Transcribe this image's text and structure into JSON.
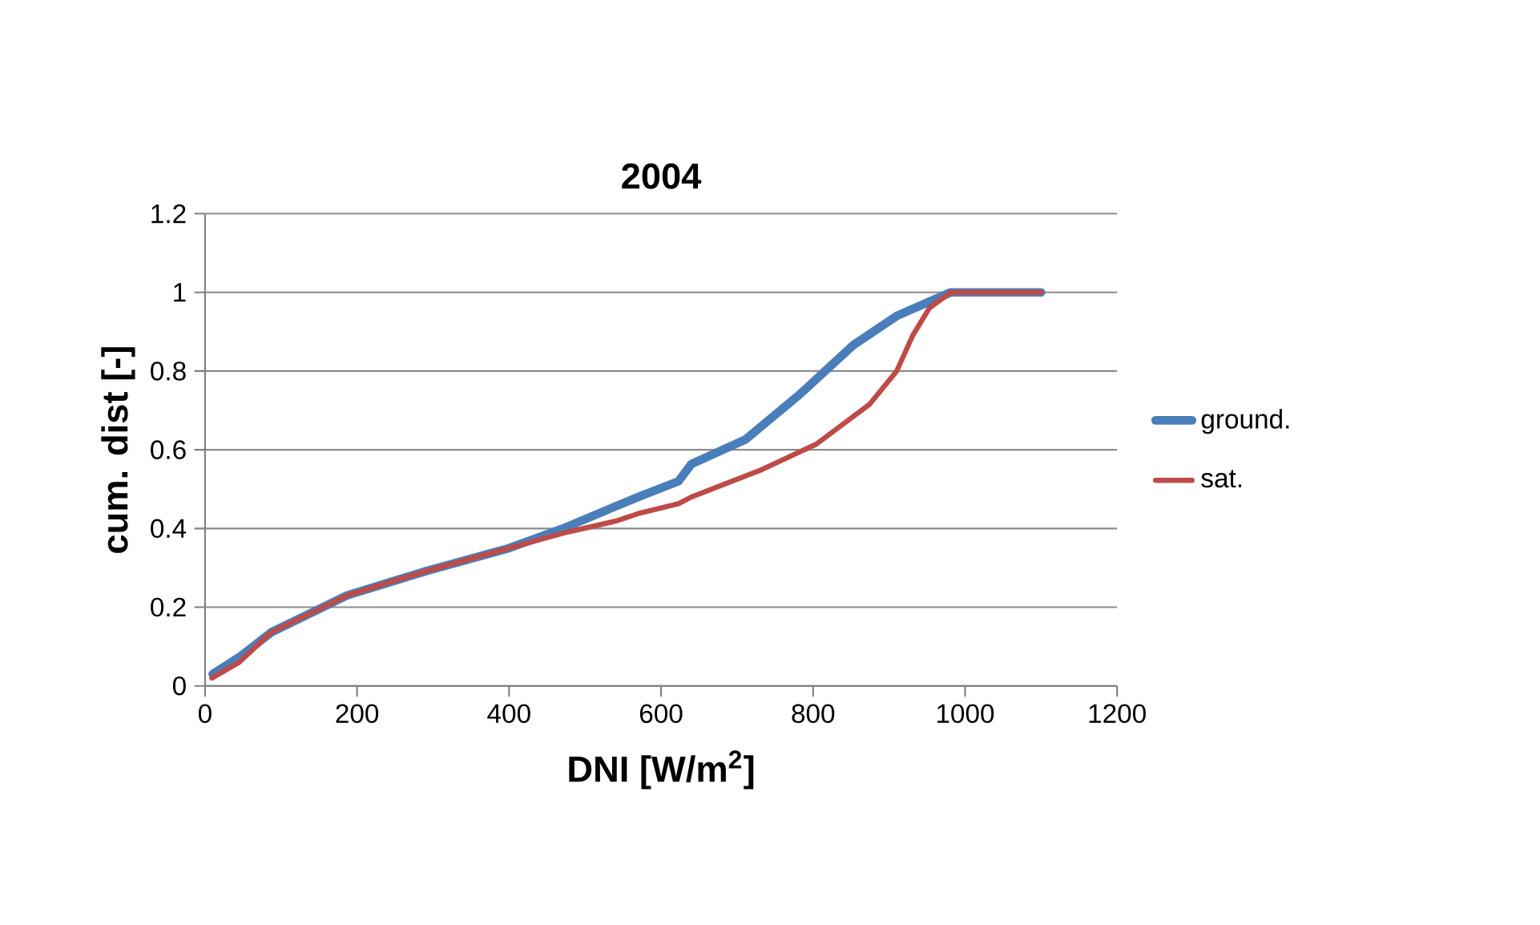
{
  "chart_data": {
    "type": "line",
    "title": "2004",
    "xlabel": "DNI [W/m$^{2}$]",
    "ylabel": "cum. dist [-]",
    "xlim": [
      0,
      1200
    ],
    "xticks": [
      0,
      200,
      400,
      600,
      800,
      1000,
      1200
    ],
    "ylim": [
      0,
      1.2
    ],
    "yticks": [
      0,
      0.2,
      0.4,
      0.6,
      0.8,
      1,
      1.2
    ],
    "grid": "y",
    "legend": "right",
    "marker": "none",
    "line_style": "solid",
    "series": [
      {
        "name": "ground.",
        "color": "#4a7ebb",
        "x": [
          10,
          45,
          87,
          187,
          293,
          400,
          471,
          541,
          570,
          623,
          640,
          711,
          782,
          853,
          910,
          981,
          1100
        ],
        "values": [
          0.03,
          0.073,
          0.136,
          0.23,
          0.293,
          0.35,
          0.4,
          0.457,
          0.48,
          0.52,
          0.564,
          0.626,
          0.74,
          0.866,
          0.94,
          1.0,
          1.0
        ]
      },
      {
        "name": "sat.",
        "color": "#be4b48",
        "x": [
          9,
          45,
          87,
          187,
          293,
          400,
          471,
          541,
          570,
          623,
          640,
          733,
          804,
          874,
          910,
          931,
          953,
          981,
          1100
        ],
        "values": [
          0.02,
          0.06,
          0.136,
          0.23,
          0.293,
          0.35,
          0.388,
          0.419,
          0.438,
          0.463,
          0.48,
          0.55,
          0.614,
          0.715,
          0.8,
          0.89,
          0.96,
          1.0,
          1.0
        ]
      }
    ]
  }
}
